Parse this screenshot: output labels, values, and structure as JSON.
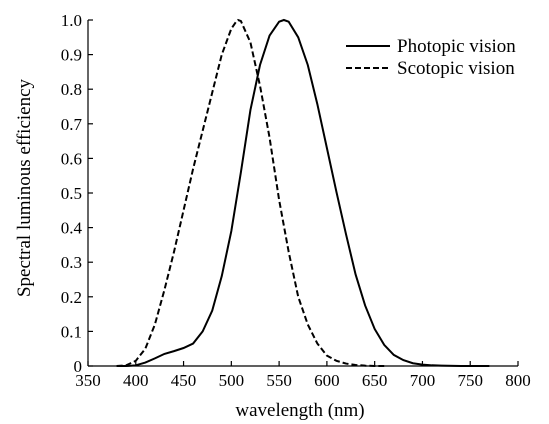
{
  "chart_data": {
    "type": "line",
    "title": "",
    "xlabel": "wavelength (nm)",
    "ylabel": "Spectral luminous efficiency",
    "xlim": [
      350,
      800
    ],
    "ylim": [
      0,
      1.0
    ],
    "x_ticks": [
      "350",
      "400",
      "450",
      "500",
      "550",
      "600",
      "650",
      "700",
      "750",
      "800"
    ],
    "y_ticks": [
      "0",
      "0.1",
      "0.2",
      "0.3",
      "0.4",
      "0.5",
      "0.6",
      "0.7",
      "0.8",
      "0.9",
      "1.0"
    ],
    "grid": false,
    "legend_position": "top-right",
    "series": [
      {
        "name": "Photopic vision",
        "style": "solid",
        "x": [
          380,
          390,
          400,
          410,
          420,
          430,
          440,
          450,
          460,
          470,
          480,
          490,
          500,
          510,
          520,
          530,
          540,
          550,
          555,
          560,
          570,
          580,
          590,
          600,
          610,
          620,
          630,
          640,
          650,
          660,
          670,
          680,
          690,
          700,
          710,
          720,
          740,
          770
        ],
        "y": [
          0.0,
          0.0,
          0.002,
          0.01,
          0.022,
          0.035,
          0.043,
          0.052,
          0.065,
          0.1,
          0.16,
          0.26,
          0.39,
          0.56,
          0.74,
          0.87,
          0.955,
          0.995,
          1.0,
          0.995,
          0.95,
          0.87,
          0.757,
          0.63,
          0.503,
          0.381,
          0.265,
          0.175,
          0.107,
          0.061,
          0.032,
          0.017,
          0.008,
          0.004,
          0.002,
          0.001,
          0.0,
          0.0
        ]
      },
      {
        "name": "Scotopic vision",
        "style": "dashed",
        "x": [
          380,
          390,
          400,
          410,
          420,
          430,
          440,
          450,
          460,
          470,
          480,
          490,
          500,
          505,
          507,
          510,
          520,
          530,
          540,
          550,
          560,
          570,
          580,
          590,
          600,
          610,
          620,
          630,
          640,
          650,
          660
        ],
        "y": [
          0.0,
          0.002,
          0.015,
          0.05,
          0.12,
          0.22,
          0.33,
          0.45,
          0.57,
          0.68,
          0.79,
          0.9,
          0.975,
          0.995,
          1.0,
          0.997,
          0.935,
          0.81,
          0.66,
          0.48,
          0.33,
          0.2,
          0.12,
          0.065,
          0.03,
          0.015,
          0.007,
          0.003,
          0.001,
          0.0,
          0.0
        ]
      }
    ]
  }
}
